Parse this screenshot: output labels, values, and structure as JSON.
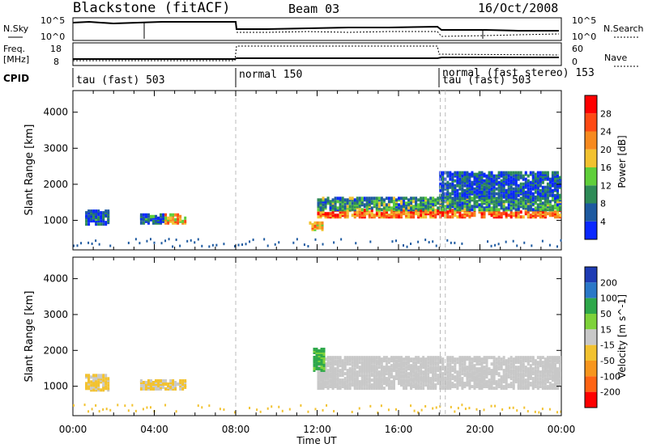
{
  "header": {
    "site": "Blackstone (fitACF)",
    "beam": "Beam 03",
    "date": "16/Oct/2008"
  },
  "summary_panel": {
    "left_nsky": "N.Sky",
    "left_freq_1": "Freq.",
    "left_freq_2": "[MHz]",
    "left_cpid": "CPID",
    "right_nsearch": "N.Search",
    "right_nave": "Nave",
    "nsky_ticks": [
      "10^5",
      "10^0"
    ],
    "freq_ticks": [
      "18",
      "8"
    ],
    "nsearch_ticks": [
      "10^5",
      "10^0"
    ],
    "nave_ticks": [
      "60",
      "0"
    ],
    "cpid_segments": [
      {
        "label": "tau (fast) 503",
        "start_hour": 0
      },
      {
        "label": "normal 150",
        "start_hour": 8
      },
      {
        "label": "tau (fast) 503",
        "start_hour": 18.05
      },
      {
        "label": "normal (fast stereo) 153",
        "start_hour": 18.05
      }
    ]
  },
  "chart_data": [
    {
      "type": "heatmap",
      "name": "power",
      "ylabel": "Slant Range [km]",
      "yticks": [
        1000,
        2000,
        3000,
        4000
      ],
      "ylim": [
        180,
        4600
      ],
      "xlim_hours": [
        0,
        24
      ],
      "colorbar_label": "Power [dB]",
      "colorbar_ticks": [
        4,
        8,
        12,
        16,
        20,
        24,
        28
      ],
      "colorbar_colors": [
        "#0a28ff",
        "#1e5aa0",
        "#2e8b57",
        "#5fcf3a",
        "#f2c230",
        "#f78a1f",
        "#ff4a14",
        "#ff0000"
      ],
      "regions": [
        {
          "x": [
            0.6,
            1.8
          ],
          "y": [
            850,
            1250
          ],
          "value": 6
        },
        {
          "x": [
            3.3,
            4.5
          ],
          "y": [
            880,
            1120
          ],
          "value": 6
        },
        {
          "x": [
            4.5,
            5.5
          ],
          "y": [
            880,
            1150
          ],
          "value": 20
        },
        {
          "x": [
            11.6,
            12.2
          ],
          "y": [
            700,
            900
          ],
          "value": 20
        },
        {
          "x": [
            12.0,
            24.0
          ],
          "y": [
            1050,
            1250
          ],
          "value": 24
        },
        {
          "x": [
            12.0,
            24.0
          ],
          "y": [
            1250,
            1600
          ],
          "value": 10
        },
        {
          "x": [
            18.0,
            24.0
          ],
          "y": [
            1600,
            2300
          ],
          "value": 5
        }
      ]
    },
    {
      "type": "heatmap",
      "name": "velocity",
      "xlabel": "Time UT",
      "ylabel": "Slant Range [km]",
      "xtick_labels": [
        "00:00",
        "04:00",
        "08:00",
        "12:00",
        "16:00",
        "20:00",
        "00:00"
      ],
      "xticks_hours": [
        0,
        4,
        8,
        12,
        16,
        20,
        24
      ],
      "yticks": [
        1000,
        2000,
        3000,
        4000
      ],
      "ylim": [
        180,
        4600
      ],
      "colorbar_label": "Velocity [m s^-1]",
      "colorbar_ticks": [
        200,
        100,
        50,
        15,
        -15,
        -50,
        -100,
        -200
      ],
      "colorbar_colors": [
        "#1e3cb4",
        "#2a78c8",
        "#2ea84a",
        "#7ed23a",
        "#c8c8c8",
        "#f2c230",
        "#f7961e",
        "#ff6414",
        "#ff0000"
      ],
      "regions": [
        {
          "x": [
            0.6,
            1.8
          ],
          "y": [
            850,
            1300
          ],
          "value": -20
        },
        {
          "x": [
            3.3,
            5.5
          ],
          "y": [
            880,
            1150
          ],
          "value": -20
        },
        {
          "x": [
            12.0,
            24.0
          ],
          "y": [
            900,
            1800
          ],
          "value": 0
        },
        {
          "x": [
            11.8,
            12.3
          ],
          "y": [
            1400,
            2000
          ],
          "value": 60
        }
      ]
    }
  ]
}
